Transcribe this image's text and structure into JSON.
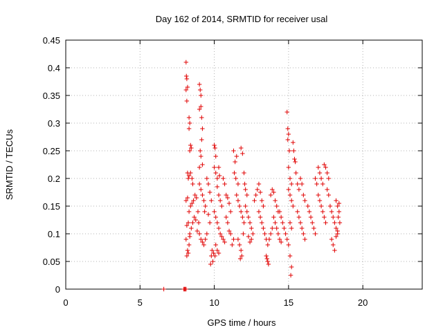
{
  "chart_data": {
    "type": "scatter",
    "title": "Day 162 of 2014, SRMTID for receiver usal",
    "xlabel": "GPS time / hours",
    "ylabel": "SRMTID / TECUs",
    "xlim": [
      0,
      24
    ],
    "ylim": [
      0,
      0.45
    ],
    "xticks": [
      0,
      5,
      10,
      15,
      20
    ],
    "yticks": [
      0,
      0.05,
      0.1,
      0.15,
      0.2,
      0.25,
      0.3,
      0.35,
      0.4,
      0.45
    ],
    "ytick_labels": [
      "0",
      "0.05",
      "0.1",
      "0.15",
      "0.2",
      "0.25",
      "0.3",
      "0.35",
      "0.4",
      "0.45"
    ],
    "grid": true,
    "marker": "+",
    "color": "#e00000",
    "series": [
      {
        "name": "SRMTID",
        "points": [
          [
            6.6,
            0.0
          ],
          [
            7.95,
            0.0
          ],
          [
            8.0,
            0.0
          ],
          [
            8.05,
            0.0
          ],
          [
            8.1,
            0.0
          ],
          [
            8.1,
            0.41
          ],
          [
            8.12,
            0.385
          ],
          [
            8.15,
            0.38
          ],
          [
            8.1,
            0.36
          ],
          [
            8.2,
            0.365
          ],
          [
            8.15,
            0.34
          ],
          [
            8.3,
            0.31
          ],
          [
            8.35,
            0.3
          ],
          [
            8.3,
            0.29
          ],
          [
            8.4,
            0.26
          ],
          [
            8.35,
            0.25
          ],
          [
            8.45,
            0.255
          ],
          [
            8.2,
            0.21
          ],
          [
            8.25,
            0.2
          ],
          [
            8.3,
            0.205
          ],
          [
            8.4,
            0.21
          ],
          [
            8.5,
            0.2
          ],
          [
            8.55,
            0.19
          ],
          [
            8.1,
            0.16
          ],
          [
            8.2,
            0.165
          ],
          [
            8.3,
            0.14
          ],
          [
            8.4,
            0.15
          ],
          [
            8.5,
            0.155
          ],
          [
            8.6,
            0.16
          ],
          [
            8.15,
            0.115
          ],
          [
            8.25,
            0.12
          ],
          [
            8.35,
            0.1
          ],
          [
            8.45,
            0.11
          ],
          [
            8.55,
            0.12
          ],
          [
            8.65,
            0.13
          ],
          [
            8.1,
            0.09
          ],
          [
            8.2,
            0.07
          ],
          [
            8.25,
            0.065
          ],
          [
            8.15,
            0.06
          ],
          [
            8.3,
            0.08
          ],
          [
            8.35,
            0.095
          ],
          [
            8.7,
            0.17
          ],
          [
            8.8,
            0.165
          ],
          [
            8.9,
            0.14
          ],
          [
            8.75,
            0.125
          ],
          [
            8.85,
            0.105
          ],
          [
            8.95,
            0.12
          ],
          [
            9.0,
            0.37
          ],
          [
            9.05,
            0.36
          ],
          [
            9.1,
            0.35
          ],
          [
            9.0,
            0.325
          ],
          [
            9.1,
            0.33
          ],
          [
            9.15,
            0.31
          ],
          [
            9.2,
            0.29
          ],
          [
            9.15,
            0.27
          ],
          [
            9.05,
            0.25
          ],
          [
            9.1,
            0.24
          ],
          [
            9.0,
            0.22
          ],
          [
            9.2,
            0.225
          ],
          [
            9.0,
            0.19
          ],
          [
            9.1,
            0.18
          ],
          [
            9.2,
            0.17
          ],
          [
            9.3,
            0.16
          ],
          [
            9.4,
            0.15
          ],
          [
            9.35,
            0.14
          ],
          [
            9.0,
            0.1
          ],
          [
            9.1,
            0.09
          ],
          [
            9.2,
            0.085
          ],
          [
            9.3,
            0.08
          ],
          [
            9.4,
            0.09
          ],
          [
            9.5,
            0.1
          ],
          [
            9.5,
            0.2
          ],
          [
            9.6,
            0.19
          ],
          [
            9.7,
            0.175
          ],
          [
            9.8,
            0.16
          ],
          [
            9.6,
            0.135
          ],
          [
            9.7,
            0.12
          ],
          [
            9.8,
            0.06
          ],
          [
            9.9,
            0.05
          ],
          [
            9.75,
            0.045
          ],
          [
            9.85,
            0.07
          ],
          [
            9.95,
            0.065
          ],
          [
            10.0,
            0.26
          ],
          [
            10.05,
            0.255
          ],
          [
            10.1,
            0.24
          ],
          [
            10.0,
            0.22
          ],
          [
            10.1,
            0.21
          ],
          [
            10.2,
            0.2
          ],
          [
            10.3,
            0.22
          ],
          [
            10.35,
            0.205
          ],
          [
            10.2,
            0.185
          ],
          [
            10.3,
            0.17
          ],
          [
            10.4,
            0.16
          ],
          [
            10.5,
            0.15
          ],
          [
            10.0,
            0.14
          ],
          [
            10.1,
            0.13
          ],
          [
            10.2,
            0.12
          ],
          [
            10.3,
            0.11
          ],
          [
            10.4,
            0.1
          ],
          [
            10.5,
            0.095
          ],
          [
            10.1,
            0.08
          ],
          [
            10.2,
            0.07
          ],
          [
            10.3,
            0.065
          ],
          [
            10.05,
            0.06
          ],
          [
            10.6,
            0.09
          ],
          [
            10.7,
            0.085
          ],
          [
            10.6,
            0.2
          ],
          [
            10.7,
            0.19
          ],
          [
            10.8,
            0.17
          ],
          [
            10.9,
            0.165
          ],
          [
            11.0,
            0.155
          ],
          [
            11.1,
            0.14
          ],
          [
            10.8,
            0.13
          ],
          [
            10.9,
            0.12
          ],
          [
            11.0,
            0.105
          ],
          [
            11.1,
            0.1
          ],
          [
            11.2,
            0.08
          ],
          [
            11.3,
            0.09
          ],
          [
            11.3,
            0.25
          ],
          [
            11.4,
            0.23
          ],
          [
            11.5,
            0.24
          ],
          [
            11.35,
            0.21
          ],
          [
            11.45,
            0.2
          ],
          [
            11.6,
            0.19
          ],
          [
            11.5,
            0.17
          ],
          [
            11.6,
            0.16
          ],
          [
            11.7,
            0.15
          ],
          [
            11.8,
            0.14
          ],
          [
            11.9,
            0.13
          ],
          [
            12.0,
            0.12
          ],
          [
            11.6,
            0.09
          ],
          [
            11.7,
            0.08
          ],
          [
            11.8,
            0.07
          ],
          [
            11.75,
            0.055
          ],
          [
            11.85,
            0.06
          ],
          [
            11.95,
            0.1
          ],
          [
            11.8,
            0.255
          ],
          [
            11.9,
            0.245
          ],
          [
            12.0,
            0.21
          ],
          [
            12.05,
            0.19
          ],
          [
            12.1,
            0.18
          ],
          [
            12.2,
            0.17
          ],
          [
            12.1,
            0.15
          ],
          [
            12.2,
            0.14
          ],
          [
            12.3,
            0.13
          ],
          [
            12.4,
            0.12
          ],
          [
            12.5,
            0.11
          ],
          [
            12.6,
            0.1
          ],
          [
            12.3,
            0.095
          ],
          [
            12.4,
            0.085
          ],
          [
            12.5,
            0.09
          ],
          [
            12.7,
            0.16
          ],
          [
            12.8,
            0.17
          ],
          [
            12.9,
            0.18
          ],
          [
            13.0,
            0.19
          ],
          [
            13.1,
            0.175
          ],
          [
            13.2,
            0.16
          ],
          [
            13.3,
            0.15
          ],
          [
            13.0,
            0.14
          ],
          [
            13.1,
            0.13
          ],
          [
            13.2,
            0.12
          ],
          [
            13.3,
            0.11
          ],
          [
            13.4,
            0.1
          ],
          [
            13.5,
            0.09
          ],
          [
            13.6,
            0.08
          ],
          [
            13.5,
            0.06
          ],
          [
            13.6,
            0.05
          ],
          [
            13.65,
            0.045
          ],
          [
            13.55,
            0.055
          ],
          [
            13.7,
            0.09
          ],
          [
            13.8,
            0.1
          ],
          [
            13.9,
            0.11
          ],
          [
            13.8,
            0.17
          ],
          [
            13.9,
            0.18
          ],
          [
            14.0,
            0.175
          ],
          [
            14.1,
            0.16
          ],
          [
            14.2,
            0.15
          ],
          [
            14.3,
            0.14
          ],
          [
            14.0,
            0.13
          ],
          [
            14.1,
            0.12
          ],
          [
            14.2,
            0.11
          ],
          [
            14.3,
            0.1
          ],
          [
            14.4,
            0.09
          ],
          [
            14.5,
            0.085
          ],
          [
            14.4,
            0.14
          ],
          [
            14.5,
            0.13
          ],
          [
            14.6,
            0.12
          ],
          [
            14.7,
            0.11
          ],
          [
            14.8,
            0.1
          ],
          [
            14.9,
            0.09
          ],
          [
            14.9,
            0.32
          ],
          [
            14.95,
            0.29
          ],
          [
            15.0,
            0.28
          ],
          [
            14.95,
            0.27
          ],
          [
            15.05,
            0.25
          ],
          [
            15.0,
            0.22
          ],
          [
            15.1,
            0.2
          ],
          [
            15.2,
            0.19
          ],
          [
            15.0,
            0.18
          ],
          [
            15.1,
            0.17
          ],
          [
            15.2,
            0.16
          ],
          [
            15.3,
            0.15
          ],
          [
            15.3,
            0.265
          ],
          [
            15.35,
            0.25
          ],
          [
            15.4,
            0.235
          ],
          [
            15.45,
            0.23
          ],
          [
            15.5,
            0.21
          ],
          [
            15.1,
            0.12
          ],
          [
            15.2,
            0.11
          ],
          [
            15.0,
            0.08
          ],
          [
            15.1,
            0.06
          ],
          [
            15.2,
            0.04
          ],
          [
            15.15,
            0.025
          ],
          [
            15.6,
            0.19
          ],
          [
            15.7,
            0.18
          ],
          [
            15.8,
            0.2
          ],
          [
            15.9,
            0.19
          ],
          [
            16.0,
            0.17
          ],
          [
            16.1,
            0.16
          ],
          [
            15.6,
            0.14
          ],
          [
            15.7,
            0.13
          ],
          [
            15.8,
            0.12
          ],
          [
            15.9,
            0.11
          ],
          [
            16.0,
            0.1
          ],
          [
            16.1,
            0.09
          ],
          [
            16.3,
            0.15
          ],
          [
            16.4,
            0.14
          ],
          [
            16.5,
            0.13
          ],
          [
            16.6,
            0.12
          ],
          [
            16.7,
            0.11
          ],
          [
            16.8,
            0.1
          ],
          [
            16.8,
            0.2
          ],
          [
            16.9,
            0.19
          ],
          [
            17.0,
            0.22
          ],
          [
            17.1,
            0.21
          ],
          [
            17.2,
            0.2
          ],
          [
            17.3,
            0.19
          ],
          [
            17.0,
            0.17
          ],
          [
            17.1,
            0.16
          ],
          [
            17.2,
            0.15
          ],
          [
            17.3,
            0.14
          ],
          [
            17.4,
            0.13
          ],
          [
            17.5,
            0.12
          ],
          [
            17.4,
            0.225
          ],
          [
            17.5,
            0.22
          ],
          [
            17.6,
            0.21
          ],
          [
            17.7,
            0.2
          ],
          [
            17.6,
            0.18
          ],
          [
            17.7,
            0.17
          ],
          [
            17.8,
            0.15
          ],
          [
            17.9,
            0.14
          ],
          [
            18.0,
            0.13
          ],
          [
            18.1,
            0.12
          ],
          [
            18.2,
            0.11
          ],
          [
            18.3,
            0.1
          ],
          [
            17.9,
            0.09
          ],
          [
            18.0,
            0.08
          ],
          [
            18.1,
            0.07
          ],
          [
            18.2,
            0.095
          ],
          [
            18.3,
            0.105
          ],
          [
            18.2,
            0.16
          ],
          [
            18.3,
            0.15
          ],
          [
            18.4,
            0.14
          ],
          [
            18.35,
            0.13
          ],
          [
            18.45,
            0.12
          ],
          [
            18.4,
            0.155
          ]
        ]
      }
    ]
  }
}
